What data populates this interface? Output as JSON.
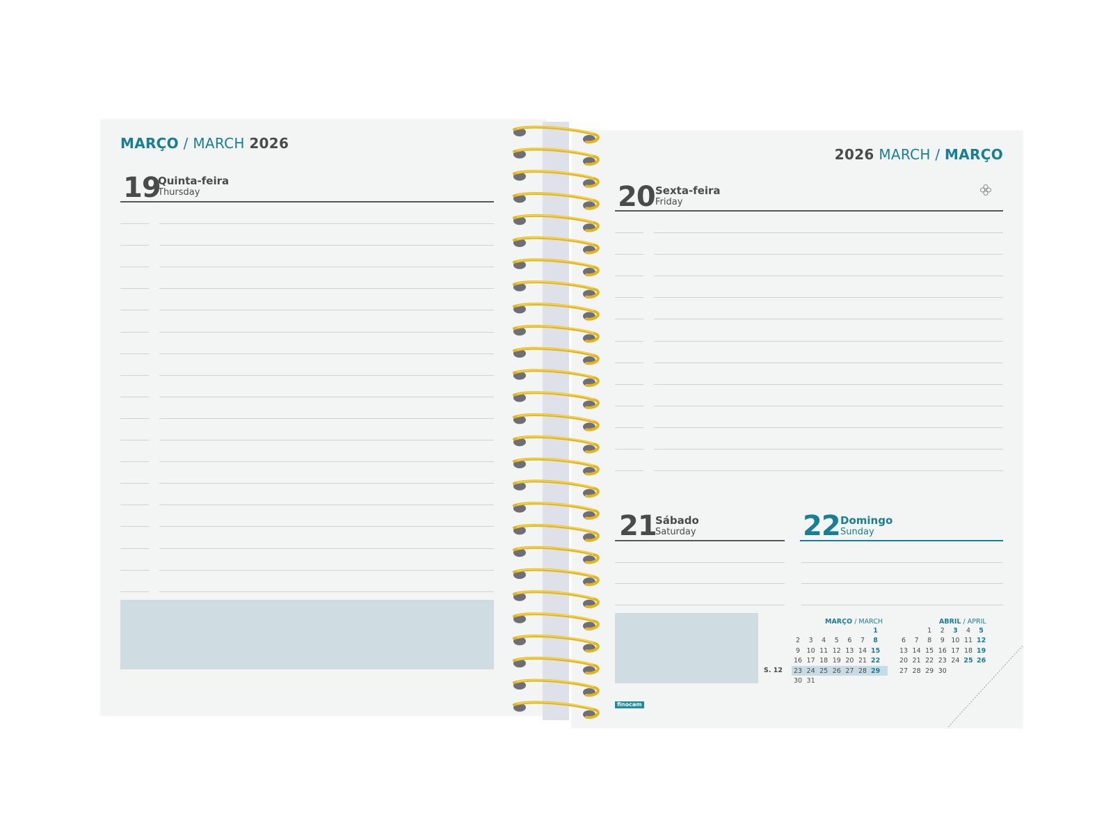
{
  "left": {
    "header": {
      "month_pt": "MARÇO",
      "sep": " / ",
      "month_en": "MARCH",
      "year": "2026"
    },
    "day": {
      "number": "19",
      "name_pt": "Quinta-feira",
      "name_en": "Thursday"
    }
  },
  "right": {
    "header": {
      "year": "2026",
      "month_en": "MARCH",
      "sep": " / ",
      "month_pt": "MARÇO"
    },
    "day20": {
      "number": "20",
      "name_pt": "Sexta-feira",
      "name_en": "Friday"
    },
    "day21": {
      "number": "21",
      "name_pt": "Sábado",
      "name_en": "Saturday"
    },
    "day22": {
      "number": "22",
      "name_pt": "Domingo",
      "name_en": "Sunday"
    },
    "flower_icon": "flower-icon",
    "brand": "finocam"
  },
  "mini_calendars": {
    "march": {
      "title_pt": "MARÇO",
      "sep": " / ",
      "title_en": "MARCH",
      "week_label": "S. 12",
      "rows": [
        [
          "",
          "",
          "",
          "",
          "",
          "",
          "1"
        ],
        [
          "2",
          "3",
          "4",
          "5",
          "6",
          "7",
          "8"
        ],
        [
          "9",
          "10",
          "11",
          "12",
          "13",
          "14",
          "15"
        ],
        [
          "16",
          "17",
          "18",
          "19",
          "20",
          "21",
          "22"
        ],
        [
          "23",
          "24",
          "25",
          "26",
          "27",
          "28",
          "29"
        ],
        [
          "30",
          "31",
          "",
          "",
          "",
          "",
          ""
        ]
      ]
    },
    "april": {
      "title_pt": "ABRIL",
      "sep": " / ",
      "title_en": "APRIL",
      "rows": [
        [
          "",
          "",
          "1",
          "2",
          "3",
          "4",
          "5"
        ],
        [
          "6",
          "7",
          "8",
          "9",
          "10",
          "11",
          "12"
        ],
        [
          "13",
          "14",
          "15",
          "16",
          "17",
          "18",
          "19"
        ],
        [
          "20",
          "21",
          "22",
          "23",
          "24",
          "25",
          "26"
        ],
        [
          "27",
          "28",
          "29",
          "30",
          "",
          "",
          ""
        ]
      ],
      "highlight_teal": [
        "3",
        "25"
      ]
    }
  },
  "colors": {
    "accent": "#177f94",
    "paper": "#f3f4f4",
    "notes": "#cfdde3",
    "spiral": "#e2b619"
  }
}
